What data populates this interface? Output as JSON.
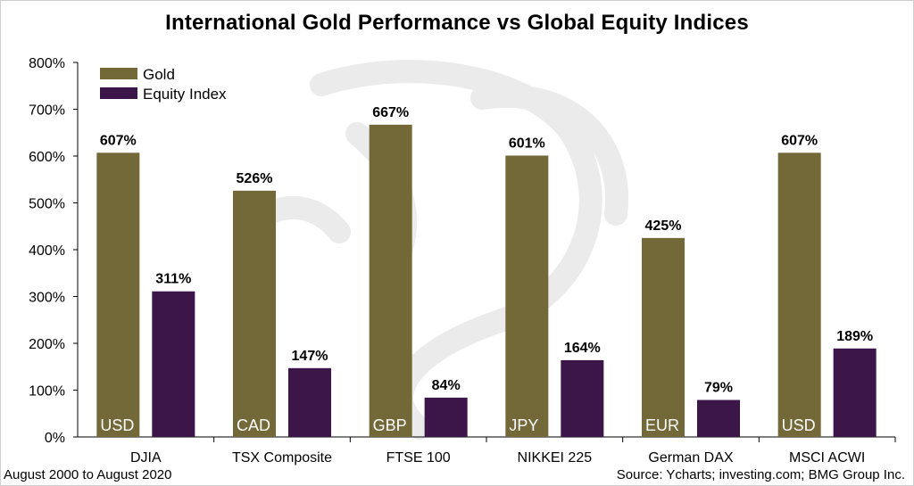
{
  "chart_data": {
    "type": "bar",
    "title": "International Gold Performance vs Global Equity Indices",
    "xlabel": "",
    "ylabel": "",
    "ylim": [
      0,
      800
    ],
    "yticks": [
      0,
      100,
      200,
      300,
      400,
      500,
      600,
      700,
      800
    ],
    "ytick_suffix": "%",
    "categories": [
      "DJIA",
      "TSX Composite",
      "FTSE 100",
      "NIKKEI 225",
      "German DAX",
      "MSCI ACWI"
    ],
    "currencies": [
      "USD",
      "CAD",
      "GBP",
      "JPY",
      "EUR",
      "USD"
    ],
    "series": [
      {
        "name": "Gold",
        "color": "#736837",
        "values": [
          607,
          526,
          667,
          601,
          425,
          607
        ]
      },
      {
        "name": "Equity Index",
        "color": "#3d1649",
        "values": [
          311,
          147,
          84,
          164,
          79,
          189
        ]
      }
    ],
    "legend_position": "top-left",
    "grid": false
  },
  "footer": {
    "period": "August 2000 to August 2020",
    "source": "Source: Ycharts; investing.com; BMG Group Inc."
  }
}
